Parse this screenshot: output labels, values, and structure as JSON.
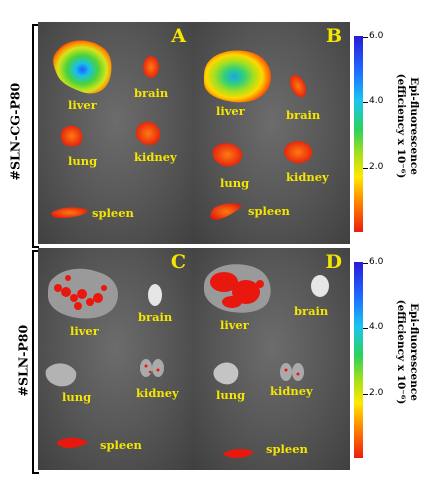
{
  "figure": {
    "groups": [
      {
        "label": "#SLN-CG-P80"
      },
      {
        "label": "#SLN-P80"
      }
    ],
    "panels": [
      {
        "letter": "A",
        "organs": {
          "liver": "liver",
          "brain": "brain",
          "lung": "lung",
          "kidney": "kidney",
          "spleen": "spleen"
        }
      },
      {
        "letter": "B",
        "organs": {
          "liver": "liver",
          "brain": "brain",
          "lung": "lung",
          "kidney": "kidney",
          "spleen": "spleen"
        }
      },
      {
        "letter": "C",
        "organs": {
          "liver": "liver",
          "brain": "brain",
          "lung": "lung",
          "kidney": "kidney",
          "spleen": "spleen"
        }
      },
      {
        "letter": "D",
        "organs": {
          "liver": "liver",
          "brain": "brain",
          "lung": "lung",
          "kidney": "kidney",
          "spleen": "spleen"
        }
      }
    ],
    "colorbars": [
      {
        "title_line1": "Epi-fluorescence",
        "title_line2": "(efficiency x 10⁻⁶)",
        "ticks": [
          "6.0",
          "4.0",
          "2.0"
        ]
      },
      {
        "title_line1": "Epi-fluorescence",
        "title_line2": "(efficiency x 10⁻⁶)",
        "ticks": [
          "6.0",
          "4.0",
          "2.0"
        ]
      }
    ]
  }
}
